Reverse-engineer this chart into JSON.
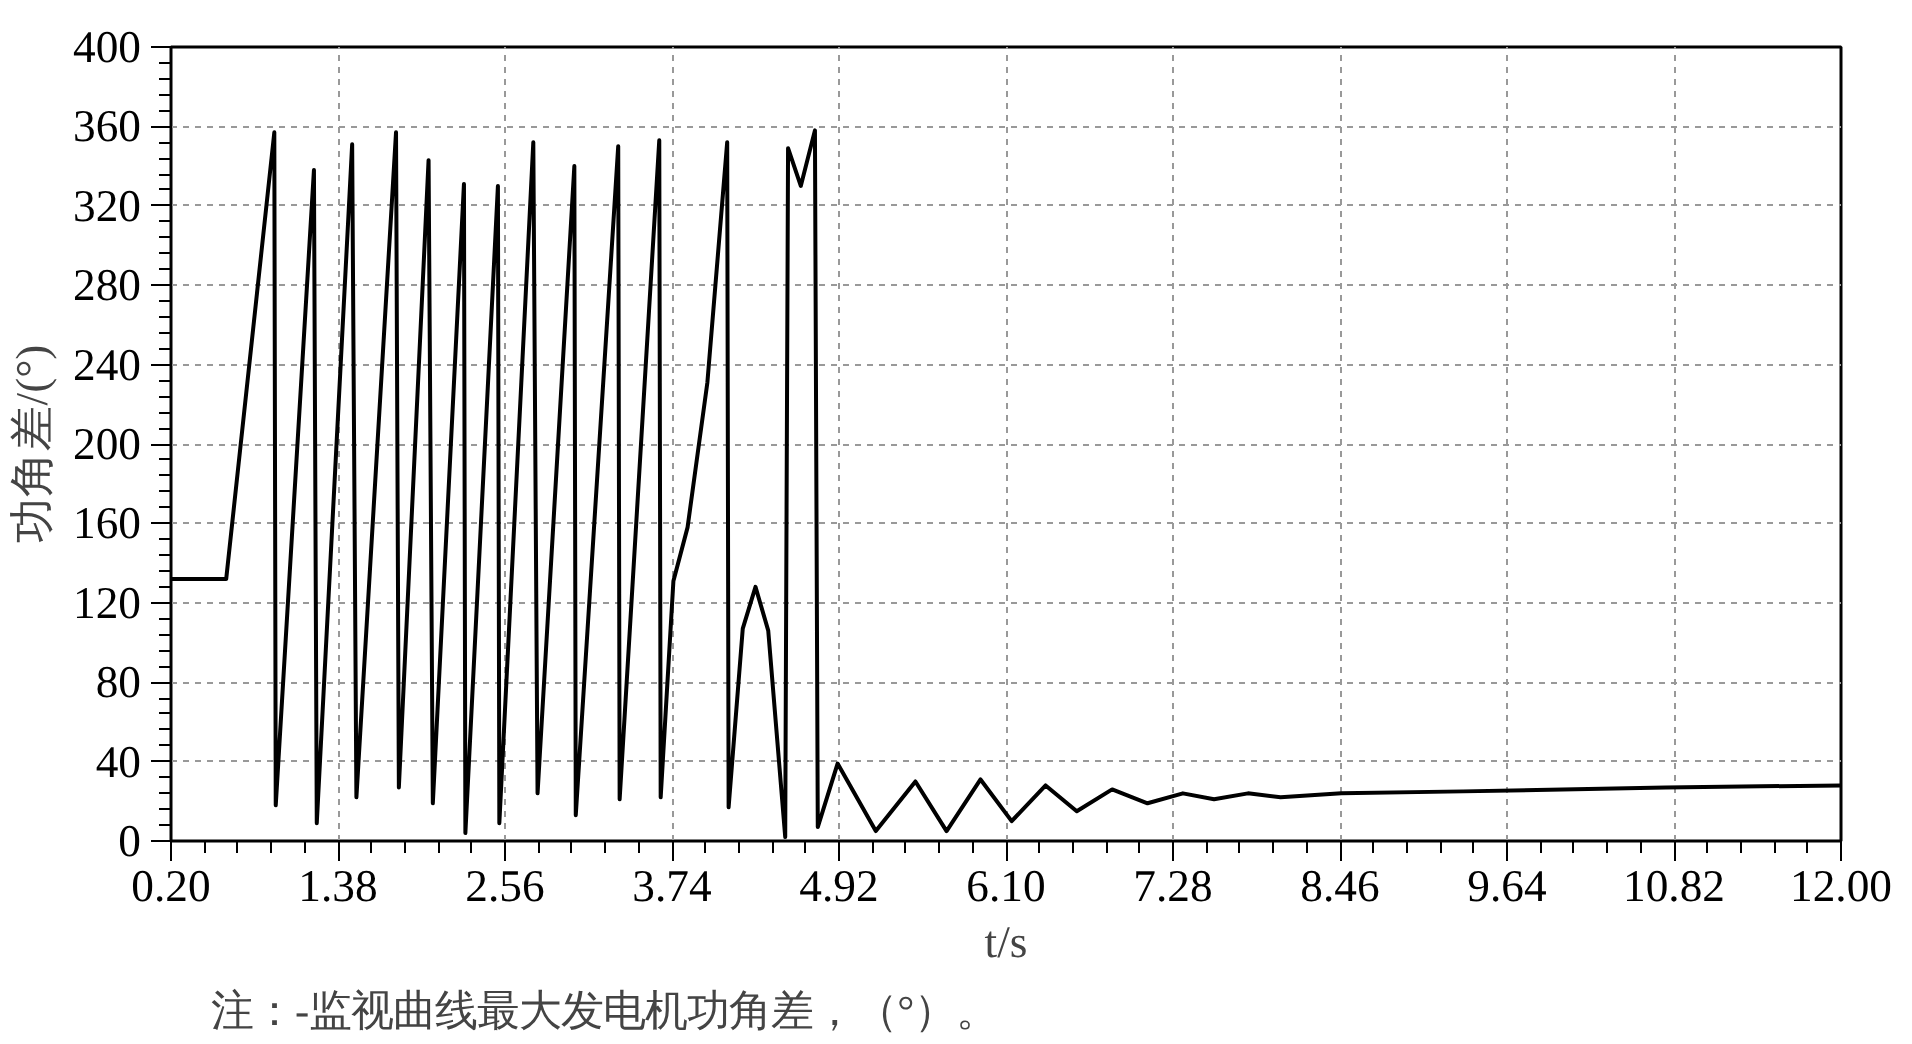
{
  "chart_data": {
    "type": "line",
    "xlabel": "t/s",
    "ylabel": "功角差/(°)",
    "annotations": [
      "注：-监视曲线最大发电机功角差，（°）。"
    ],
    "xlim": [
      0.2,
      12.0
    ],
    "ylim": [
      0,
      400
    ],
    "xticks": [
      {
        "value": 0.2,
        "label": "0.20"
      },
      {
        "value": 1.38,
        "label": "1.38"
      },
      {
        "value": 2.56,
        "label": "2.56"
      },
      {
        "value": 3.74,
        "label": "3.74"
      },
      {
        "value": 4.92,
        "label": "4.92"
      },
      {
        "value": 6.1,
        "label": "6.10"
      },
      {
        "value": 7.28,
        "label": "7.28"
      },
      {
        "value": 8.46,
        "label": "8.46"
      },
      {
        "value": 9.64,
        "label": "9.64"
      },
      {
        "value": 10.82,
        "label": "10.82"
      },
      {
        "value": 12.0,
        "label": "12.00"
      }
    ],
    "yticks": [
      0,
      40,
      80,
      120,
      160,
      200,
      240,
      280,
      320,
      360,
      400
    ],
    "grid": true,
    "line_style": "solid",
    "marker": "none",
    "series": [
      {
        "color": "#000000",
        "x": [
          0.2,
          0.59,
          0.93,
          0.94,
          1.21,
          1.23,
          1.48,
          1.51,
          1.79,
          1.81,
          2.02,
          2.05,
          2.27,
          2.28,
          2.51,
          2.52,
          2.76,
          2.79,
          3.05,
          3.06,
          3.36,
          3.37,
          3.65,
          3.66,
          3.75,
          3.85,
          3.99,
          4.13,
          4.14,
          4.24,
          4.33,
          4.42,
          4.54,
          4.56,
          4.65,
          4.75,
          4.77,
          4.91,
          5.18,
          5.46,
          5.68,
          5.92,
          6.14,
          6.38,
          6.6,
          6.85,
          7.1,
          7.35,
          7.57,
          7.81,
          8.04,
          8.47,
          9.33,
          10.76,
          12.0
        ],
        "values": [
          132,
          132,
          357,
          18,
          338,
          9,
          351,
          22,
          357,
          27,
          343,
          19,
          331,
          4,
          330,
          9,
          352,
          24,
          340,
          13,
          350,
          21,
          353,
          22,
          131,
          158,
          231,
          352,
          17,
          107,
          128,
          106,
          2,
          349,
          330,
          358,
          7,
          39,
          5,
          30,
          5,
          31,
          10,
          28,
          15,
          26,
          19,
          24,
          21,
          24,
          22,
          24,
          25,
          27,
          28
        ]
      }
    ]
  }
}
